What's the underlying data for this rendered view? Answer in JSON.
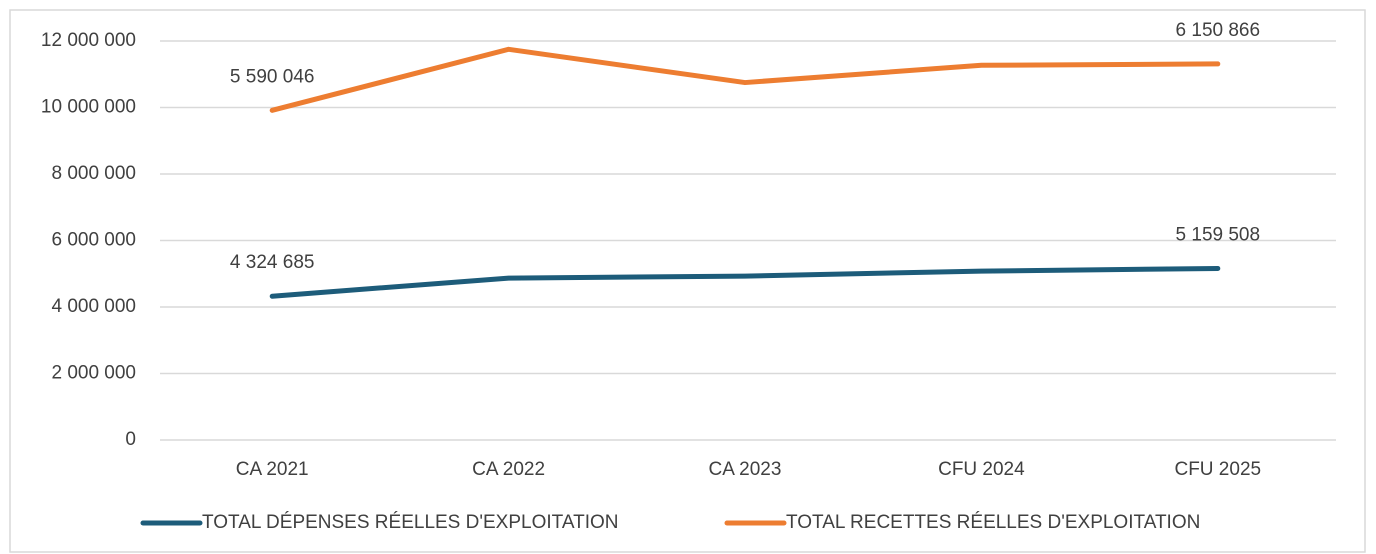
{
  "chart_data": {
    "type": "line",
    "stacked": true,
    "categories": [
      "CA 2021",
      "CA 2022",
      "CA 2023",
      "CFU 2024",
      "CFU 2025"
    ],
    "series": [
      {
        "name": "TOTAL DÉPENSES RÉELLES D'EXPLOITATION",
        "color": "#1d5c7a",
        "values": [
          4324685,
          4870000,
          4930000,
          5080000,
          5159508
        ],
        "value_labels": [
          "4 324 685",
          null,
          null,
          null,
          "5 159 508"
        ]
      },
      {
        "name": "TOTAL RECETTES RÉELLES D'EXPLOITATION",
        "color": "#ed7d31",
        "values": [
          5590046,
          6880000,
          5820000,
          6190000,
          6150866
        ],
        "value_labels": [
          "5 590 046",
          null,
          null,
          null,
          "6 150 866"
        ]
      }
    ],
    "ylim": [
      0,
      12000000
    ],
    "yticks": [
      0,
      {
        "value": 2000000,
        "label": "2 000 000"
      },
      {
        "value": 4000000,
        "label": "4 000 000"
      },
      {
        "value": 6000000,
        "label": "6 000 000"
      },
      {
        "value": 8000000,
        "label": "8 000 000"
      },
      {
        "value": 10000000,
        "label": "10 000 000"
      },
      {
        "value": 12000000,
        "label": "12 000 000"
      }
    ],
    "grid": true,
    "legend": "bottom"
  }
}
